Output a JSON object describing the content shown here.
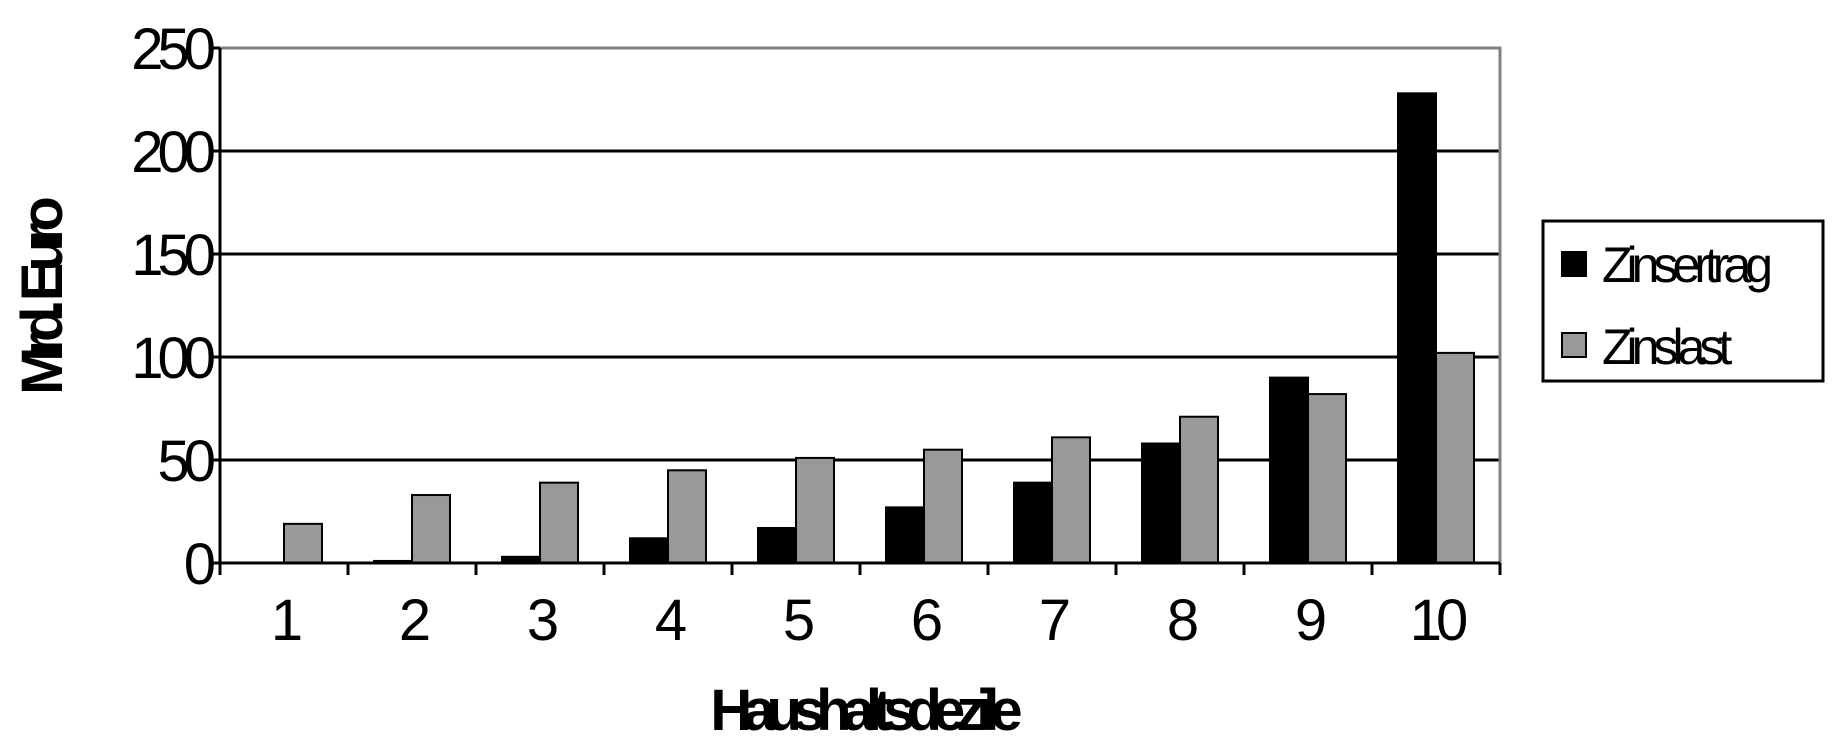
{
  "chart_data": {
    "type": "bar",
    "title": "",
    "xlabel": "Haushaltsdezile",
    "ylabel": "Mrd. Euro",
    "categories": [
      "1",
      "2",
      "3",
      "4",
      "5",
      "6",
      "7",
      "8",
      "9",
      "10"
    ],
    "series": [
      {
        "name": "Zinsertrag",
        "color": "#000000",
        "values": [
          0,
          1,
          3,
          12,
          17,
          27,
          39,
          58,
          90,
          228
        ]
      },
      {
        "name": "Zinslast",
        "color": "#999999",
        "values": [
          19,
          33,
          39,
          45,
          51,
          55,
          61,
          71,
          82,
          102
        ]
      }
    ],
    "ylim": [
      0,
      250
    ],
    "yticks": [
      "0",
      "50",
      "100",
      "150",
      "200",
      "250"
    ],
    "grid": true,
    "legend": "right"
  }
}
